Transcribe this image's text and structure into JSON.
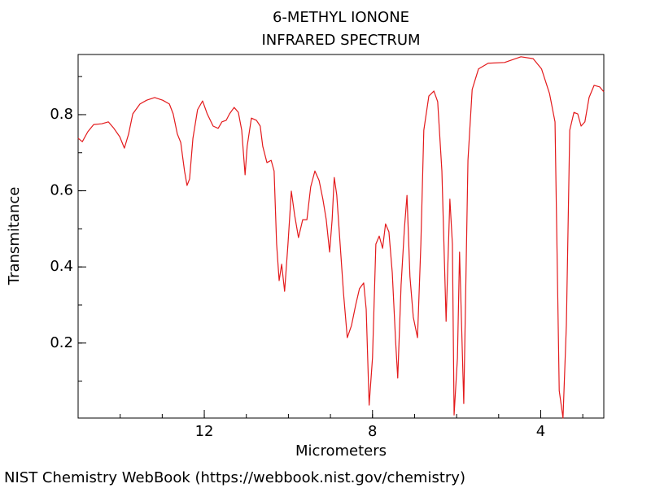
{
  "chart_data": {
    "type": "line",
    "title": "6-METHYL IONONE",
    "subtitle": "INFRARED SPECTRUM",
    "x_label": "Micrometers",
    "y_label": "Transmitance",
    "color": "#e31a1c",
    "xlim": [
      15,
      2.5
    ],
    "ylim": [
      0.003,
      0.958
    ],
    "xticks": [
      12,
      8,
      4
    ],
    "yticks": [
      0.2,
      0.4,
      0.6,
      0.8
    ],
    "x": [
      15,
      14.9,
      14.77,
      14.63,
      14.44,
      14.28,
      14.15,
      14.01,
      13.9,
      13.8,
      13.7,
      13.53,
      13.37,
      13.18,
      12.99,
      12.83,
      12.74,
      12.64,
      12.56,
      12.47,
      12.41,
      12.35,
      12.27,
      12.16,
      12.04,
      11.93,
      11.79,
      11.67,
      11.58,
      11.48,
      11.4,
      11.29,
      11.19,
      11.11,
      11.03,
      10.98,
      10.88,
      10.76,
      10.67,
      10.61,
      10.51,
      10.41,
      10.34,
      10.28,
      10.22,
      10.16,
      10.09,
      10.01,
      9.93,
      9.85,
      9.76,
      9.66,
      9.56,
      9.47,
      9.37,
      9.27,
      9.18,
      9.1,
      9.02,
      8.96,
      8.91,
      8.85,
      8.77,
      8.69,
      8.6,
      8.5,
      8.4,
      8.31,
      8.21,
      8.15,
      8.08,
      8.0,
      7.92,
      7.84,
      7.76,
      7.69,
      7.61,
      7.53,
      7.45,
      7.4,
      7.32,
      7.24,
      7.18,
      7.11,
      7.03,
      6.93,
      6.85,
      6.78,
      6.66,
      6.54,
      6.45,
      6.35,
      6.25,
      6.16,
      6.1,
      6.06,
      5.98,
      5.93,
      5.83,
      5.73,
      5.63,
      5.48,
      5.25,
      4.86,
      4.47,
      4.18,
      3.98,
      3.79,
      3.66,
      3.56,
      3.47,
      3.39,
      3.31,
      3.21,
      3.12,
      3.04,
      2.95,
      2.85,
      2.73,
      2.6,
      2.5
    ],
    "values": [
      0.738,
      0.729,
      0.755,
      0.774,
      0.776,
      0.781,
      0.764,
      0.742,
      0.712,
      0.749,
      0.802,
      0.828,
      0.838,
      0.845,
      0.838,
      0.828,
      0.802,
      0.749,
      0.727,
      0.652,
      0.614,
      0.631,
      0.738,
      0.813,
      0.836,
      0.802,
      0.77,
      0.764,
      0.781,
      0.785,
      0.802,
      0.819,
      0.806,
      0.759,
      0.642,
      0.717,
      0.791,
      0.785,
      0.77,
      0.717,
      0.674,
      0.68,
      0.652,
      0.46,
      0.364,
      0.407,
      0.336,
      0.46,
      0.599,
      0.535,
      0.477,
      0.524,
      0.524,
      0.61,
      0.652,
      0.627,
      0.578,
      0.524,
      0.439,
      0.524,
      0.635,
      0.589,
      0.46,
      0.332,
      0.214,
      0.246,
      0.3,
      0.343,
      0.358,
      0.289,
      0.037,
      0.161,
      0.46,
      0.481,
      0.449,
      0.513,
      0.492,
      0.385,
      0.204,
      0.108,
      0.353,
      0.503,
      0.588,
      0.375,
      0.268,
      0.214,
      0.46,
      0.759,
      0.849,
      0.862,
      0.834,
      0.652,
      0.257,
      0.578,
      0.46,
      0.011,
      0.161,
      0.439,
      0.041,
      0.68,
      0.866,
      0.92,
      0.935,
      0.937,
      0.952,
      0.947,
      0.92,
      0.855,
      0.781,
      0.075,
      0.003,
      0.247,
      0.759,
      0.806,
      0.802,
      0.77,
      0.781,
      0.845,
      0.877,
      0.873,
      0.86
    ]
  },
  "footer": "NIST Chemistry WebBook (https://webbook.nist.gov/chemistry)"
}
